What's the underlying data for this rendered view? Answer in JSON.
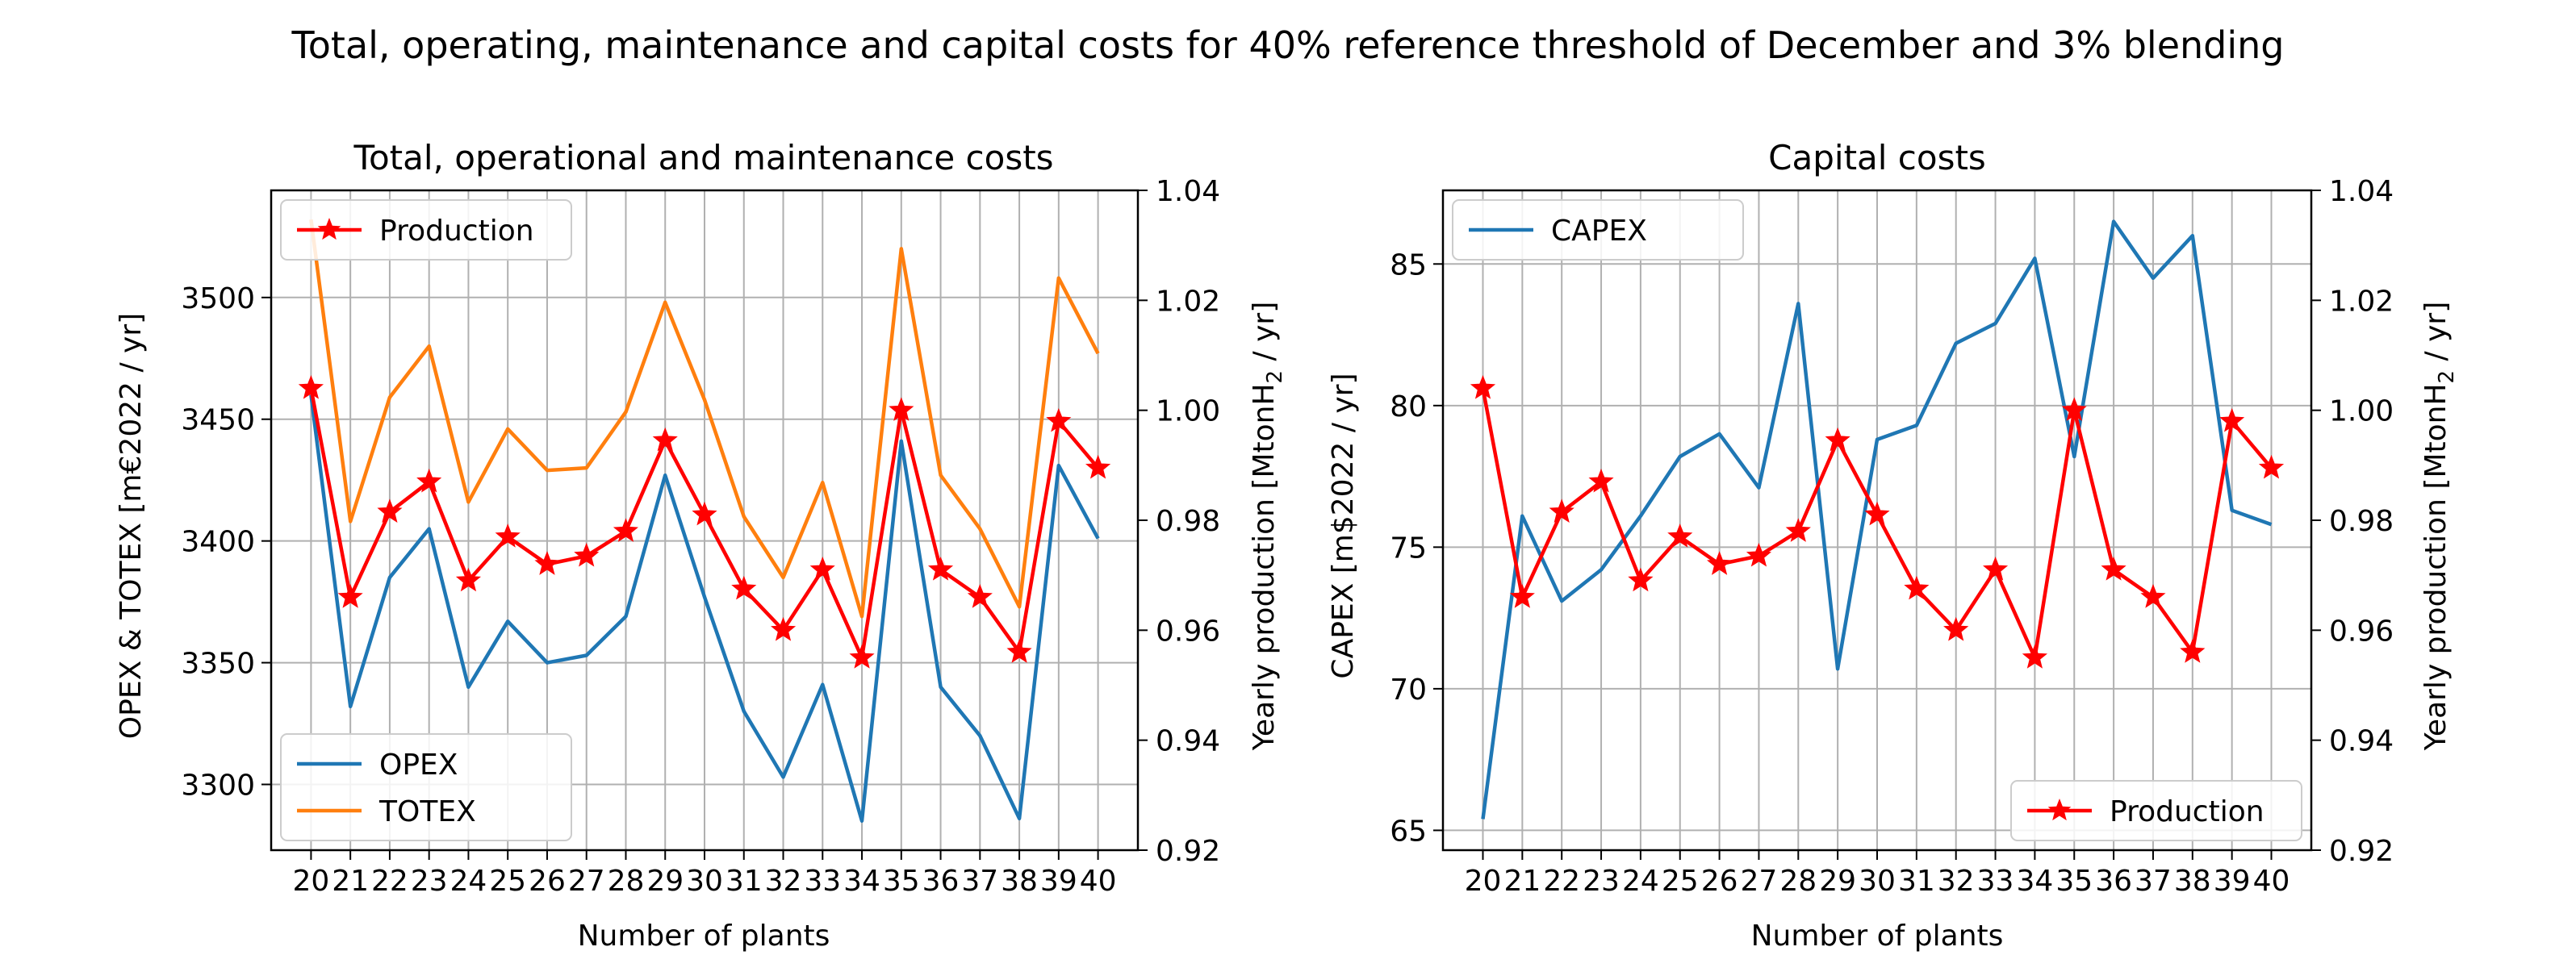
{
  "figure": {
    "title": "Total, operating, maintenance and capital costs for 40% reference threshold of December and 3% blending"
  },
  "colors": {
    "opex": "#1f77b4",
    "totex": "#ff7f0e",
    "capex": "#1f77b4",
    "production": "#ff0000",
    "grid": "#b0b0b0"
  },
  "chart_data": [
    {
      "type": "line",
      "title": "Total, operational and maintenance costs",
      "xlabel": "Number of plants",
      "ylabel": "OPEX & TOTEX [m€2022 / yr]",
      "y2label": "Yearly production [MtonH",
      "y2label_sub": "2",
      "y2label_end": " / yr]",
      "x": [
        20,
        21,
        22,
        23,
        24,
        25,
        26,
        27,
        28,
        29,
        30,
        31,
        32,
        33,
        34,
        35,
        36,
        37,
        38,
        39,
        40
      ],
      "xticks": [
        "20",
        "21",
        "22",
        "23",
        "24",
        "25",
        "26",
        "27",
        "28",
        "29",
        "30",
        "31",
        "32",
        "33",
        "34",
        "35",
        "36",
        "37",
        "38",
        "39",
        "40"
      ],
      "ylim": [
        3273,
        3544
      ],
      "yticks": [
        3300,
        3350,
        3400,
        3450,
        3500
      ],
      "ytick_labels": [
        "3300",
        "3350",
        "3400",
        "3450",
        "3500"
      ],
      "y2lim": [
        0.92,
        1.04
      ],
      "y2ticks": [
        0.92,
        0.94,
        0.96,
        0.98,
        1.0,
        1.02,
        1.04
      ],
      "y2tick_labels": [
        "0.92",
        "0.94",
        "0.96",
        "0.98",
        "1.00",
        "1.02",
        "1.04"
      ],
      "grid": true,
      "series": [
        {
          "name": "OPEX",
          "axis": "left",
          "color": "#1f77b4",
          "marker": "none",
          "values": [
            3460,
            3332,
            3385,
            3405,
            3340,
            3367,
            3350,
            3353,
            3369,
            3427,
            3377,
            3330,
            3303,
            3341,
            3285,
            3441,
            3340,
            3320,
            3286,
            3431,
            3401
          ]
        },
        {
          "name": "TOTEX",
          "axis": "left",
          "color": "#ff7f0e",
          "marker": "none",
          "values": [
            3532,
            3408,
            3459,
            3480,
            3416,
            3446,
            3429,
            3430,
            3453,
            3498,
            3458,
            3410,
            3385,
            3424,
            3369,
            3520,
            3427,
            3405,
            3373,
            3508,
            3477
          ]
        },
        {
          "name": "Production",
          "axis": "right",
          "color": "#ff0000",
          "marker": "star",
          "values": [
            1.004,
            0.966,
            0.9815,
            0.987,
            0.969,
            0.977,
            0.972,
            0.9735,
            0.978,
            0.9945,
            0.981,
            0.9675,
            0.96,
            0.971,
            0.955,
            1.0,
            0.971,
            0.966,
            0.956,
            0.998,
            0.9895
          ]
        }
      ],
      "legends": [
        {
          "position": "upper left",
          "entries": [
            "Production"
          ]
        },
        {
          "position": "lower left",
          "entries": [
            "OPEX",
            "TOTEX"
          ]
        }
      ]
    },
    {
      "type": "line",
      "title": "Capital costs",
      "xlabel": "Number of plants",
      "ylabel": "CAPEX [m$2022 / yr]",
      "y2label": "Yearly production [MtonH",
      "y2label_sub": "2",
      "y2label_end": " / yr]",
      "x": [
        20,
        21,
        22,
        23,
        24,
        25,
        26,
        27,
        28,
        29,
        30,
        31,
        32,
        33,
        34,
        35,
        36,
        37,
        38,
        39,
        40
      ],
      "xticks": [
        "20",
        "21",
        "22",
        "23",
        "24",
        "25",
        "26",
        "27",
        "28",
        "29",
        "30",
        "31",
        "32",
        "33",
        "34",
        "35",
        "36",
        "37",
        "38",
        "39",
        "40"
      ],
      "ylim": [
        64.3,
        87.6
      ],
      "yticks": [
        65,
        70,
        75,
        80,
        85
      ],
      "ytick_labels": [
        "65",
        "70",
        "75",
        "80",
        "85"
      ],
      "y2lim": [
        0.92,
        1.04
      ],
      "y2ticks": [
        0.92,
        0.94,
        0.96,
        0.98,
        1.0,
        1.02,
        1.04
      ],
      "y2tick_labels": [
        "0.92",
        "0.94",
        "0.96",
        "0.98",
        "1.00",
        "1.02",
        "1.04"
      ],
      "grid": true,
      "series": [
        {
          "name": "CAPEX",
          "axis": "left",
          "color": "#1f77b4",
          "marker": "none",
          "values": [
            65.4,
            76.1,
            73.1,
            74.2,
            76.1,
            78.2,
            79.0,
            77.1,
            83.6,
            70.7,
            78.8,
            79.3,
            82.2,
            82.9,
            85.2,
            78.2,
            86.5,
            84.5,
            86.0,
            76.3,
            75.8
          ]
        },
        {
          "name": "Production",
          "axis": "right",
          "color": "#ff0000",
          "marker": "star",
          "values": [
            1.004,
            0.966,
            0.9815,
            0.987,
            0.969,
            0.977,
            0.972,
            0.9735,
            0.978,
            0.9945,
            0.981,
            0.9675,
            0.96,
            0.971,
            0.955,
            1.0,
            0.971,
            0.966,
            0.956,
            0.998,
            0.9895
          ]
        }
      ],
      "legends": [
        {
          "position": "upper left",
          "entries": [
            "CAPEX"
          ]
        },
        {
          "position": "lower right",
          "entries": [
            "Production"
          ]
        }
      ]
    }
  ]
}
